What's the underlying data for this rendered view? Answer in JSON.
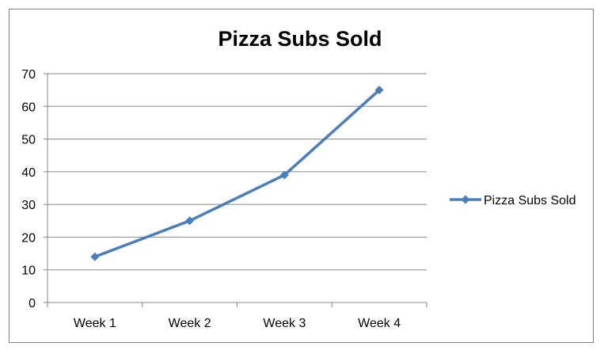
{
  "chart_data": {
    "type": "line",
    "title": "Pizza Subs Sold",
    "xlabel": "",
    "ylabel": "",
    "categories": [
      "Week 1",
      "Week 2",
      "Week 3",
      "Week 4"
    ],
    "series": [
      {
        "name": "Pizza Subs Sold",
        "values": [
          14,
          25,
          39,
          65
        ],
        "color": "#4a7ebb",
        "marker": "diamond"
      }
    ],
    "ylim": [
      0,
      70
    ],
    "yticks": [
      0,
      10,
      20,
      30,
      40,
      50,
      60,
      70
    ],
    "grid": true,
    "legend_position": "right"
  }
}
